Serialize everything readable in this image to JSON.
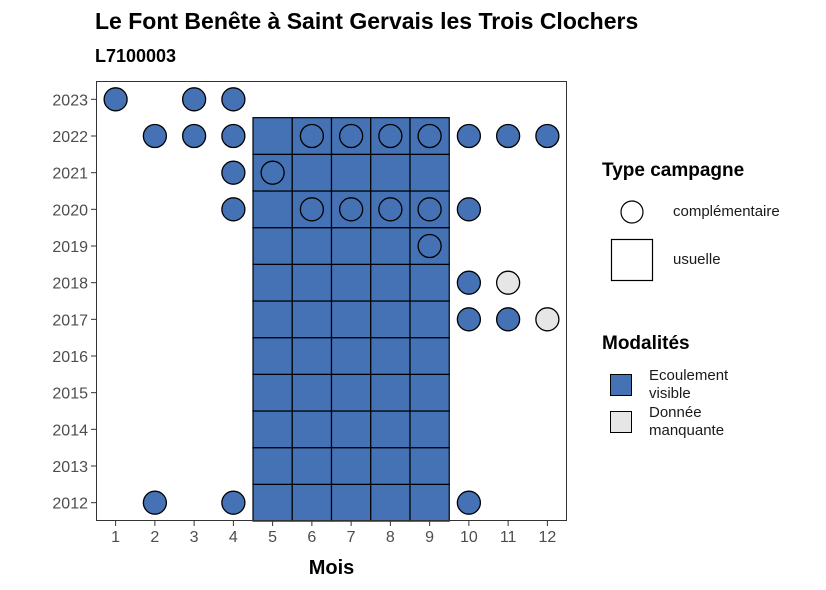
{
  "title": "Le Font Benête à Saint Gervais les Trois Clochers",
  "subtitle": "L7100003",
  "legend": {
    "type_title": "Type campagne",
    "type_items": [
      {
        "label": "complémentaire",
        "shape": "circle"
      },
      {
        "label": "usuelle",
        "shape": "square"
      }
    ],
    "mod_title": "Modalités",
    "mod_items": [
      {
        "label": "Ecoulement visible",
        "color": "#4472b5"
      },
      {
        "label": "Donnée manquante",
        "color": "#e6e6e6"
      }
    ]
  },
  "chart_data": {
    "type": "scatter",
    "xlabel": "Mois",
    "ylabel": "",
    "x_ticks": [
      1,
      2,
      3,
      4,
      5,
      6,
      7,
      8,
      9,
      10,
      11,
      12
    ],
    "y_ticks": [
      2012,
      2013,
      2014,
      2015,
      2016,
      2017,
      2018,
      2019,
      2020,
      2021,
      2022,
      2023
    ],
    "xlim": [
      0.5,
      12.5
    ],
    "ylim": [
      2011.5,
      2023.5
    ],
    "grid": false,
    "legend_position": "right",
    "colors": {
      "Ecoulement visible": "#4472b5",
      "Donnée manquante": "#e6e6e6"
    },
    "usuelle": {
      "months": [
        5,
        6,
        7,
        8,
        9
      ],
      "years": [
        2012,
        2013,
        2014,
        2015,
        2016,
        2017,
        2018,
        2019,
        2020,
        2021,
        2022
      ],
      "modalite": "Ecoulement visible"
    },
    "complementaire": [
      {
        "month": 1,
        "year": 2023,
        "modalite": "Ecoulement visible"
      },
      {
        "month": 3,
        "year": 2023,
        "modalite": "Ecoulement visible"
      },
      {
        "month": 4,
        "year": 2023,
        "modalite": "Ecoulement visible"
      },
      {
        "month": 2,
        "year": 2022,
        "modalite": "Ecoulement visible"
      },
      {
        "month": 3,
        "year": 2022,
        "modalite": "Ecoulement visible"
      },
      {
        "month": 4,
        "year": 2022,
        "modalite": "Ecoulement visible"
      },
      {
        "month": 6,
        "year": 2022,
        "modalite": "Ecoulement visible"
      },
      {
        "month": 7,
        "year": 2022,
        "modalite": "Ecoulement visible"
      },
      {
        "month": 8,
        "year": 2022,
        "modalite": "Ecoulement visible"
      },
      {
        "month": 9,
        "year": 2022,
        "modalite": "Ecoulement visible"
      },
      {
        "month": 10,
        "year": 2022,
        "modalite": "Ecoulement visible"
      },
      {
        "month": 11,
        "year": 2022,
        "modalite": "Ecoulement visible"
      },
      {
        "month": 12,
        "year": 2022,
        "modalite": "Ecoulement visible"
      },
      {
        "month": 4,
        "year": 2021,
        "modalite": "Ecoulement visible"
      },
      {
        "month": 5,
        "year": 2021,
        "modalite": "Ecoulement visible"
      },
      {
        "month": 4,
        "year": 2020,
        "modalite": "Ecoulement visible"
      },
      {
        "month": 6,
        "year": 2020,
        "modalite": "Ecoulement visible"
      },
      {
        "month": 7,
        "year": 2020,
        "modalite": "Ecoulement visible"
      },
      {
        "month": 8,
        "year": 2020,
        "modalite": "Ecoulement visible"
      },
      {
        "month": 9,
        "year": 2020,
        "modalite": "Ecoulement visible"
      },
      {
        "month": 10,
        "year": 2020,
        "modalite": "Ecoulement visible"
      },
      {
        "month": 9,
        "year": 2019,
        "modalite": "Ecoulement visible"
      },
      {
        "month": 10,
        "year": 2018,
        "modalite": "Ecoulement visible"
      },
      {
        "month": 11,
        "year": 2018,
        "modalite": "Donnée manquante"
      },
      {
        "month": 10,
        "year": 2017,
        "modalite": "Ecoulement visible"
      },
      {
        "month": 11,
        "year": 2017,
        "modalite": "Ecoulement visible"
      },
      {
        "month": 12,
        "year": 2017,
        "modalite": "Donnée manquante"
      },
      {
        "month": 2,
        "year": 2012,
        "modalite": "Ecoulement visible"
      },
      {
        "month": 4,
        "year": 2012,
        "modalite": "Ecoulement visible"
      },
      {
        "month": 10,
        "year": 2012,
        "modalite": "Ecoulement visible"
      }
    ]
  }
}
